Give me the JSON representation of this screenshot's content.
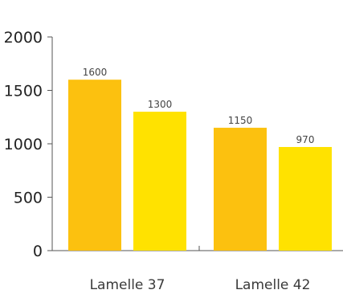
{
  "chart_data": {
    "type": "bar",
    "categories": [
      "Lamelle 37",
      "Lamelle 42"
    ],
    "series": [
      {
        "values": [
          1600,
          1150
        ],
        "color": "#FCC10F"
      },
      {
        "values": [
          1300,
          970
        ],
        "color": "#FFE200"
      }
    ],
    "data_labels": [
      [
        "1600",
        "1150"
      ],
      [
        "1300",
        "970"
      ]
    ],
    "yticks": [
      "0",
      "500",
      "1000",
      "1500",
      "2000"
    ],
    "ylim": [
      0,
      2000
    ],
    "title": "",
    "xlabel": "",
    "ylabel": "",
    "grid": false,
    "legend": "none"
  }
}
